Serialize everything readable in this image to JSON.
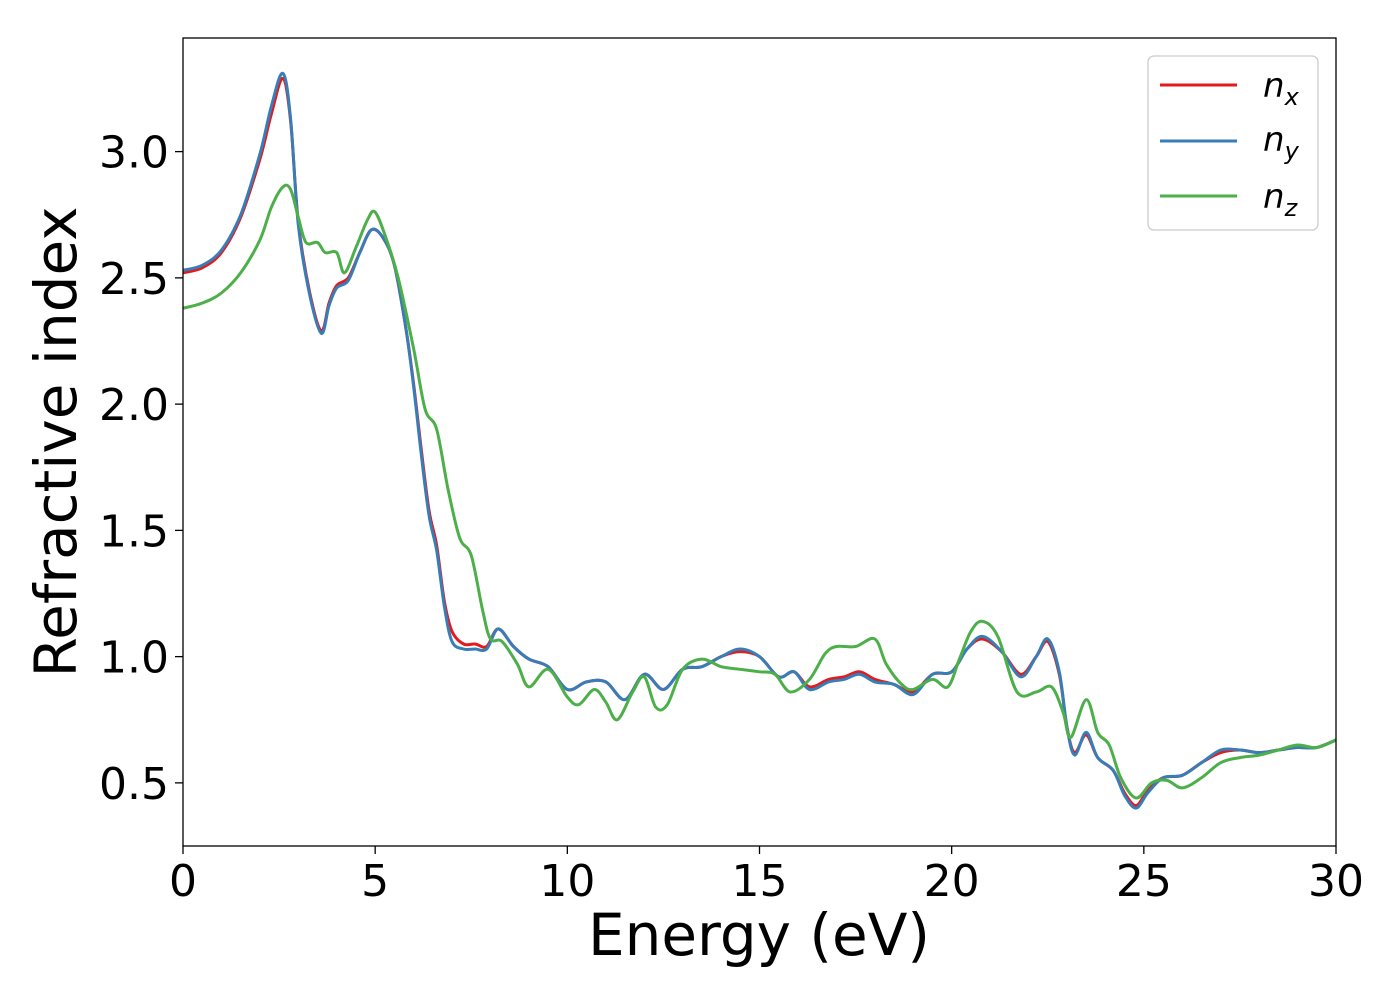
{
  "chart_data": {
    "type": "line",
    "title": "",
    "xlabel": "Energy (eV)",
    "ylabel": "Refractive index",
    "xlim": [
      0,
      30
    ],
    "ylim": [
      0.25,
      3.45
    ],
    "xticks": [
      0,
      5,
      10,
      15,
      20,
      25,
      30
    ],
    "xtick_labels": [
      "0",
      "5",
      "10",
      "15",
      "20",
      "25",
      "30"
    ],
    "yticks": [
      0.5,
      1.0,
      1.5,
      2.0,
      2.5,
      3.0
    ],
    "ytick_labels": [
      "0.5",
      "1.0",
      "1.5",
      "2.0",
      "2.5",
      "3.0"
    ],
    "grid": false,
    "legend_position": "top-right",
    "series": [
      {
        "name": "n",
        "subscript": "x",
        "color": "#e41a1c",
        "points": [
          [
            0,
            2.52
          ],
          [
            0.5,
            2.54
          ],
          [
            1,
            2.6
          ],
          [
            1.5,
            2.74
          ],
          [
            2,
            2.97
          ],
          [
            2.3,
            3.15
          ],
          [
            2.6,
            3.29
          ],
          [
            2.8,
            3.12
          ],
          [
            3.0,
            2.72
          ],
          [
            3.3,
            2.44
          ],
          [
            3.6,
            2.29
          ],
          [
            3.8,
            2.4
          ],
          [
            4.0,
            2.47
          ],
          [
            4.3,
            2.5
          ],
          [
            4.6,
            2.6
          ],
          [
            4.9,
            2.69
          ],
          [
            5.2,
            2.66
          ],
          [
            5.5,
            2.55
          ],
          [
            5.8,
            2.3
          ],
          [
            6.0,
            2.08
          ],
          [
            6.2,
            1.82
          ],
          [
            6.4,
            1.58
          ],
          [
            6.6,
            1.44
          ],
          [
            6.8,
            1.22
          ],
          [
            7.0,
            1.1
          ],
          [
            7.3,
            1.05
          ],
          [
            7.6,
            1.05
          ],
          [
            7.9,
            1.04
          ],
          [
            8.2,
            1.11
          ],
          [
            8.6,
            1.04
          ],
          [
            9.0,
            0.99
          ],
          [
            9.5,
            0.96
          ],
          [
            10.0,
            0.87
          ],
          [
            10.5,
            0.9
          ],
          [
            11.0,
            0.9
          ],
          [
            11.5,
            0.83
          ],
          [
            12.0,
            0.93
          ],
          [
            12.5,
            0.87
          ],
          [
            13.0,
            0.95
          ],
          [
            13.5,
            0.96
          ],
          [
            14.0,
            1.0
          ],
          [
            14.5,
            1.02
          ],
          [
            15.0,
            1.0
          ],
          [
            15.5,
            0.92
          ],
          [
            15.9,
            0.94
          ],
          [
            16.3,
            0.88
          ],
          [
            16.8,
            0.91
          ],
          [
            17.2,
            0.92
          ],
          [
            17.6,
            0.94
          ],
          [
            18.0,
            0.91
          ],
          [
            18.5,
            0.89
          ],
          [
            19.0,
            0.86
          ],
          [
            19.5,
            0.93
          ],
          [
            20.0,
            0.94
          ],
          [
            20.4,
            1.03
          ],
          [
            20.8,
            1.07
          ],
          [
            21.3,
            1.02
          ],
          [
            21.8,
            0.93
          ],
          [
            22.2,
            1.0
          ],
          [
            22.5,
            1.06
          ],
          [
            22.8,
            0.93
          ],
          [
            23.0,
            0.72
          ],
          [
            23.2,
            0.62
          ],
          [
            23.5,
            0.69
          ],
          [
            23.8,
            0.6
          ],
          [
            24.2,
            0.55
          ],
          [
            24.5,
            0.46
          ],
          [
            24.8,
            0.41
          ],
          [
            25.1,
            0.47
          ],
          [
            25.5,
            0.52
          ],
          [
            26.0,
            0.53
          ],
          [
            26.5,
            0.58
          ],
          [
            27.0,
            0.62
          ],
          [
            27.5,
            0.63
          ],
          [
            28.0,
            0.62
          ],
          [
            28.5,
            0.63
          ],
          [
            29.0,
            0.64
          ],
          [
            29.5,
            0.64
          ],
          [
            30.0,
            0.67
          ]
        ]
      },
      {
        "name": "n",
        "subscript": "y",
        "color": "#377eb8",
        "points": [
          [
            0,
            2.53
          ],
          [
            0.5,
            2.55
          ],
          [
            1,
            2.61
          ],
          [
            1.5,
            2.75
          ],
          [
            2,
            2.99
          ],
          [
            2.3,
            3.18
          ],
          [
            2.6,
            3.31
          ],
          [
            2.8,
            3.13
          ],
          [
            3.0,
            2.71
          ],
          [
            3.3,
            2.43
          ],
          [
            3.6,
            2.28
          ],
          [
            3.8,
            2.39
          ],
          [
            4.0,
            2.46
          ],
          [
            4.3,
            2.49
          ],
          [
            4.6,
            2.6
          ],
          [
            4.9,
            2.69
          ],
          [
            5.2,
            2.66
          ],
          [
            5.5,
            2.55
          ],
          [
            5.8,
            2.3
          ],
          [
            6.0,
            2.07
          ],
          [
            6.2,
            1.8
          ],
          [
            6.4,
            1.56
          ],
          [
            6.6,
            1.42
          ],
          [
            6.8,
            1.2
          ],
          [
            7.0,
            1.06
          ],
          [
            7.3,
            1.03
          ],
          [
            7.6,
            1.03
          ],
          [
            7.9,
            1.03
          ],
          [
            8.2,
            1.11
          ],
          [
            8.6,
            1.04
          ],
          [
            9.0,
            0.99
          ],
          [
            9.5,
            0.96
          ],
          [
            10.0,
            0.87
          ],
          [
            10.5,
            0.9
          ],
          [
            11.0,
            0.9
          ],
          [
            11.5,
            0.83
          ],
          [
            12.0,
            0.93
          ],
          [
            12.5,
            0.87
          ],
          [
            13.0,
            0.95
          ],
          [
            13.5,
            0.96
          ],
          [
            14.0,
            1.0
          ],
          [
            14.5,
            1.03
          ],
          [
            15.0,
            1.0
          ],
          [
            15.5,
            0.92
          ],
          [
            15.9,
            0.94
          ],
          [
            16.3,
            0.87
          ],
          [
            16.8,
            0.9
          ],
          [
            17.2,
            0.91
          ],
          [
            17.6,
            0.93
          ],
          [
            18.0,
            0.9
          ],
          [
            18.5,
            0.89
          ],
          [
            19.0,
            0.85
          ],
          [
            19.5,
            0.93
          ],
          [
            20.0,
            0.94
          ],
          [
            20.4,
            1.03
          ],
          [
            20.8,
            1.08
          ],
          [
            21.3,
            1.02
          ],
          [
            21.8,
            0.92
          ],
          [
            22.2,
            1.0
          ],
          [
            22.5,
            1.07
          ],
          [
            22.8,
            0.94
          ],
          [
            23.0,
            0.72
          ],
          [
            23.2,
            0.61
          ],
          [
            23.5,
            0.7
          ],
          [
            23.8,
            0.6
          ],
          [
            24.2,
            0.55
          ],
          [
            24.5,
            0.45
          ],
          [
            24.8,
            0.4
          ],
          [
            25.1,
            0.46
          ],
          [
            25.5,
            0.52
          ],
          [
            26.0,
            0.53
          ],
          [
            26.5,
            0.58
          ],
          [
            27.0,
            0.63
          ],
          [
            27.5,
            0.63
          ],
          [
            28.0,
            0.62
          ],
          [
            28.5,
            0.63
          ],
          [
            29.0,
            0.64
          ],
          [
            29.5,
            0.64
          ],
          [
            30.0,
            0.67
          ]
        ]
      },
      {
        "name": "n",
        "subscript": "z",
        "color": "#4daf4a",
        "points": [
          [
            0,
            2.38
          ],
          [
            0.5,
            2.4
          ],
          [
            1,
            2.44
          ],
          [
            1.5,
            2.52
          ],
          [
            2,
            2.65
          ],
          [
            2.3,
            2.78
          ],
          [
            2.6,
            2.86
          ],
          [
            2.8,
            2.85
          ],
          [
            3.0,
            2.74
          ],
          [
            3.2,
            2.64
          ],
          [
            3.5,
            2.64
          ],
          [
            3.7,
            2.6
          ],
          [
            4.0,
            2.6
          ],
          [
            4.2,
            2.52
          ],
          [
            4.5,
            2.62
          ],
          [
            4.8,
            2.73
          ],
          [
            5.0,
            2.76
          ],
          [
            5.3,
            2.65
          ],
          [
            5.6,
            2.5
          ],
          [
            6.0,
            2.22
          ],
          [
            6.3,
            1.98
          ],
          [
            6.6,
            1.9
          ],
          [
            6.9,
            1.66
          ],
          [
            7.2,
            1.47
          ],
          [
            7.5,
            1.4
          ],
          [
            7.8,
            1.18
          ],
          [
            8.0,
            1.07
          ],
          [
            8.3,
            1.06
          ],
          [
            8.7,
            0.97
          ],
          [
            9.0,
            0.88
          ],
          [
            9.5,
            0.95
          ],
          [
            10.0,
            0.84
          ],
          [
            10.3,
            0.81
          ],
          [
            10.7,
            0.87
          ],
          [
            11.0,
            0.82
          ],
          [
            11.3,
            0.75
          ],
          [
            11.7,
            0.86
          ],
          [
            12.0,
            0.92
          ],
          [
            12.3,
            0.8
          ],
          [
            12.6,
            0.81
          ],
          [
            13.0,
            0.95
          ],
          [
            13.5,
            0.99
          ],
          [
            14.0,
            0.96
          ],
          [
            14.5,
            0.95
          ],
          [
            15.0,
            0.94
          ],
          [
            15.4,
            0.93
          ],
          [
            15.8,
            0.86
          ],
          [
            16.3,
            0.91
          ],
          [
            16.7,
            1.01
          ],
          [
            17.0,
            1.04
          ],
          [
            17.5,
            1.04
          ],
          [
            18.0,
            1.07
          ],
          [
            18.3,
            0.97
          ],
          [
            18.7,
            0.89
          ],
          [
            19.0,
            0.87
          ],
          [
            19.5,
            0.91
          ],
          [
            19.9,
            0.88
          ],
          [
            20.2,
            0.99
          ],
          [
            20.5,
            1.1
          ],
          [
            20.8,
            1.14
          ],
          [
            21.2,
            1.08
          ],
          [
            21.7,
            0.86
          ],
          [
            22.2,
            0.86
          ],
          [
            22.6,
            0.88
          ],
          [
            22.9,
            0.78
          ],
          [
            23.1,
            0.68
          ],
          [
            23.5,
            0.83
          ],
          [
            23.8,
            0.7
          ],
          [
            24.1,
            0.65
          ],
          [
            24.4,
            0.52
          ],
          [
            24.8,
            0.44
          ],
          [
            25.2,
            0.5
          ],
          [
            25.6,
            0.51
          ],
          [
            26.0,
            0.48
          ],
          [
            26.5,
            0.52
          ],
          [
            27.0,
            0.58
          ],
          [
            27.5,
            0.6
          ],
          [
            28.0,
            0.61
          ],
          [
            28.5,
            0.63
          ],
          [
            29.0,
            0.65
          ],
          [
            29.5,
            0.64
          ],
          [
            30.0,
            0.67
          ]
        ]
      }
    ]
  }
}
